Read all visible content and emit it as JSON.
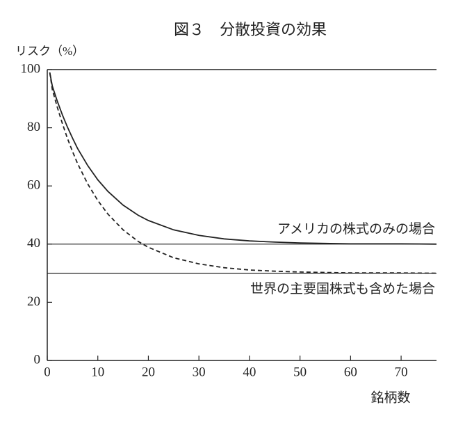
{
  "chart_data": {
    "type": "line",
    "title": "図３　分散投資の効果",
    "y_label": "リスク（%）",
    "x_label": "銘柄数",
    "x": [
      0.5,
      1,
      2,
      3,
      4,
      5,
      6,
      8,
      10,
      12,
      15,
      18,
      20,
      25,
      30,
      35,
      40,
      45,
      50,
      60,
      70,
      77
    ],
    "series": [
      {
        "color": "#222222",
        "dash": "solid",
        "values": [
          99,
          94.3,
          89.1,
          84.4,
          80.2,
          76.4,
          72.9,
          67.0,
          62.1,
          58.1,
          53.4,
          49.9,
          48.1,
          44.9,
          43.0,
          41.8,
          41.1,
          40.7,
          40.4,
          40.1,
          40.1,
          40.0
        ]
      },
      {
        "color": "#222222",
        "dash": "dashed",
        "values": [
          99,
          93.1,
          87.0,
          81.4,
          76.3,
          71.8,
          67.7,
          60.7,
          55.0,
          50.3,
          44.9,
          40.9,
          38.9,
          35.3,
          33.2,
          31.9,
          31.1,
          30.7,
          30.4,
          30.1,
          30.1,
          30.0
        ]
      }
    ],
    "reference_lines": [
      {
        "value": 40,
        "label": "アメリカの株式のみの場合",
        "label_side": "above"
      },
      {
        "value": 30,
        "label": "世界の主要国株式も含めた場合",
        "label_side": "below"
      }
    ],
    "xlim": [
      0,
      77
    ],
    "ylim": [
      0,
      100
    ],
    "xticks": [
      0,
      10,
      20,
      30,
      40,
      50,
      60,
      70
    ],
    "yticks": [
      0,
      20,
      40,
      60,
      80,
      100
    ],
    "grid": false
  }
}
